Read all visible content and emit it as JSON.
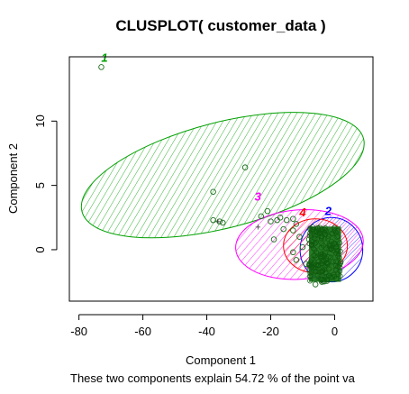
{
  "chart_data": {
    "type": "scatter",
    "title": "CLUSPLOT( customer_data )",
    "xlabel": "Component 1",
    "ylabel": "Component 2",
    "subtitle": "These two components explain 54.72 % of the point va",
    "xlim": [
      -83,
      12
    ],
    "ylim": [
      -4,
      15
    ],
    "x_ticks": [
      -80,
      -60,
      -40,
      -20,
      0
    ],
    "y_ticks": [
      0,
      5,
      10
    ],
    "grid": false,
    "clusters": [
      {
        "label": "1",
        "color": "#00a000",
        "center": [
          -35,
          5.8
        ],
        "label_pos": [
          -72,
          14.6
        ],
        "ellipse": {
          "cx": -35,
          "cy": 5.8,
          "rx": 45.5,
          "ry": 4.1,
          "angle_deg": -14.5
        }
      },
      {
        "label": "2",
        "color": "#0000ff",
        "center": [
          -1,
          0
        ],
        "label_pos": [
          -2,
          2.7
        ],
        "ellipse": {
          "cx": -1,
          "cy": 0,
          "rx": 9.8,
          "ry": 2.5,
          "angle_deg": 0
        }
      },
      {
        "label": "3",
        "color": "#ff00ff",
        "center": [
          -11,
          0.4
        ],
        "label_pos": [
          -24,
          3.8
        ],
        "ellipse": {
          "cx": -11,
          "cy": 0.4,
          "rx": 20,
          "ry": 2.7,
          "angle_deg": -4
        }
      },
      {
        "label": "4",
        "color": "#ff0000",
        "center": [
          -6,
          0.3
        ],
        "label_pos": [
          -10,
          2.6
        ],
        "ellipse": {
          "cx": -6,
          "cy": 0.3,
          "rx": 10,
          "ry": 2.1,
          "angle_deg": 0
        }
      }
    ],
    "points": [
      {
        "x": -73,
        "y": 14.2
      },
      {
        "x": -28,
        "y": 6.4
      },
      {
        "x": -38,
        "y": 4.5
      },
      {
        "x": -38,
        "y": 2.3
      },
      {
        "x": -36,
        "y": 2.2
      },
      {
        "x": -35,
        "y": 2.1
      },
      {
        "x": -23,
        "y": 2.6
      },
      {
        "x": -21,
        "y": 3.0
      },
      {
        "x": -20,
        "y": 2.2
      },
      {
        "x": -18,
        "y": 2.3
      },
      {
        "x": -17,
        "y": 2.5
      },
      {
        "x": -15,
        "y": 2.3
      },
      {
        "x": -13,
        "y": 2.4
      },
      {
        "x": -12,
        "y": 2.0
      },
      {
        "x": -13,
        "y": 1.5
      },
      {
        "x": -16,
        "y": 1.6
      },
      {
        "x": -11,
        "y": 1.0
      },
      {
        "x": -19,
        "y": 0.8
      },
      {
        "x": -13,
        "y": -0.2
      },
      {
        "x": -10,
        "y": 0.2
      },
      {
        "x": -12,
        "y": -0.8
      },
      {
        "x": -9,
        "y": -1.1
      },
      {
        "x": -6,
        "y": -2.7
      },
      {
        "x": -7,
        "y": -1.8
      },
      {
        "x": -8,
        "y": 0.8
      },
      {
        "x": -5,
        "y": -2.2
      },
      {
        "x": -4,
        "y": -2.5
      }
    ],
    "dense_region": {
      "x_min": -8,
      "x_max": 2,
      "y_min": -2.5,
      "y_max": 1.8
    },
    "center_markers": [
      {
        "x": -36.5,
        "y": 2.2,
        "symbol": "+"
      },
      {
        "x": -24,
        "y": 1.8,
        "symbol": "+"
      }
    ],
    "point_color": "#1a6b1a",
    "dense_color": "#137013"
  }
}
